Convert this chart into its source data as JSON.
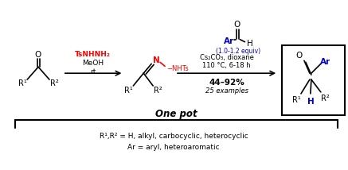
{
  "figsize": [
    4.37,
    2.14
  ],
  "dpi": 100,
  "bg": "#ffffff",
  "red": "#ff0000",
  "blue": "#0000cc",
  "black": "#000000",
  "ketone_o": "O",
  "ketone_r1": "R¹",
  "ketone_r2": "R²",
  "reagent1_l1": "TsNHNH₂",
  "reagent1_l2": "MeOH",
  "reagent1_l3": "rt",
  "hydrazone_n": "N",
  "hydrazone_nhts": "−NHTs",
  "hydrazone_r1": "R¹",
  "hydrazone_r2": "R²",
  "ald_o": "O",
  "ald_ar": "Ar",
  "ald_h": "H",
  "ald_equiv": "(1.0-1.2 equiv)",
  "cond1": "Cs₂CO₃, dioxane",
  "cond2": "110 °C, 6-18 h",
  "yield_txt": "44–92%",
  "examples_txt": "25 examples",
  "prod_o": "O",
  "prod_ar": "Ar",
  "prod_r1": "R¹",
  "prod_r2": "R²",
  "prod_h": "H",
  "one_pot": "One pot",
  "scope1": "R¹,R² = H, alkyl, carbocyclic, heterocyclic",
  "scope2": "Ar = aryl, heteroaromatic"
}
